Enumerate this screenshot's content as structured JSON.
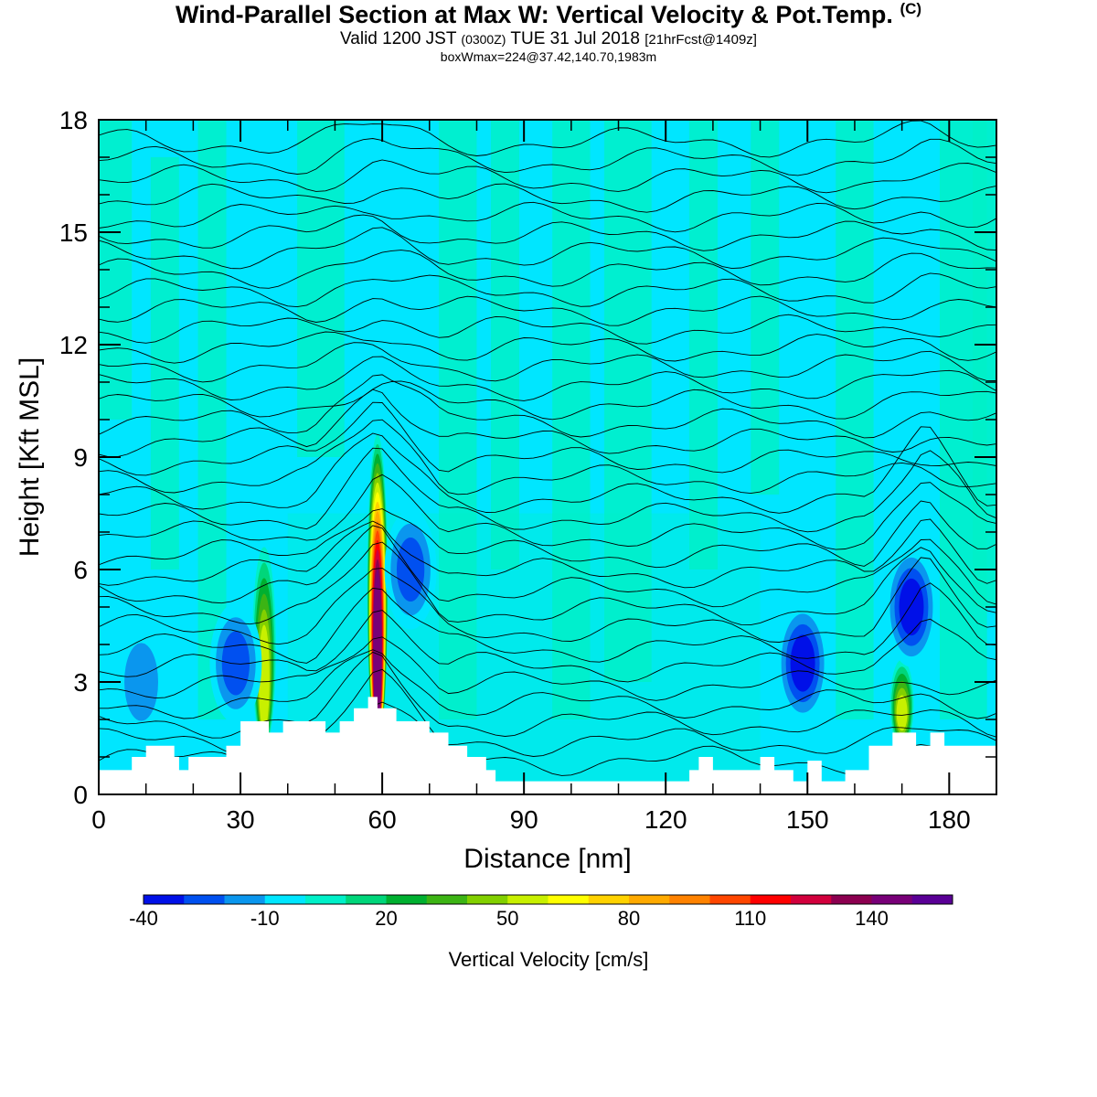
{
  "title": {
    "main": "Wind-Parallel Section at Max W: Vertical Velocity & Pot.Temp.",
    "copyright": "(C)",
    "valid": "Valid 1200 JST",
    "utc": "(0300Z)",
    "date": "TUE 31 Jul 2018",
    "forecast": "[21hrFcst@1409z]",
    "boxinfo": "boxWmax=224@37.42,140.70,1983m"
  },
  "chart_data": {
    "type": "heatmap",
    "xlabel": "Distance [nm]",
    "ylabel": "Height [Kft MSL]",
    "xlim": [
      0,
      190
    ],
    "ylim": [
      0,
      18
    ],
    "xticks": [
      0,
      30,
      60,
      90,
      120,
      150,
      180
    ],
    "yticks": [
      0,
      3,
      6,
      9,
      12,
      15,
      18
    ],
    "colorbar": {
      "label": "Vertical Velocity [cm/s]",
      "ticks": [
        -40,
        -10,
        20,
        50,
        80,
        110,
        140
      ],
      "levels": [
        -40,
        -30,
        -20,
        -10,
        0,
        10,
        20,
        30,
        40,
        50,
        60,
        70,
        80,
        90,
        100,
        110,
        120,
        130,
        140,
        150,
        160
      ],
      "colors": [
        "#0010e8",
        "#0050f0",
        "#0a96ee",
        "#00e6ff",
        "#00f0c8",
        "#00d67a",
        "#00b030",
        "#3cb414",
        "#82d000",
        "#c8f000",
        "#ffff00",
        "#ffd200",
        "#ffaa00",
        "#ff8200",
        "#ff4600",
        "#ff0000",
        "#d2003c",
        "#8c0050",
        "#780078",
        "#5a0096"
      ]
    },
    "background_level": "-10 to 0",
    "features": [
      {
        "name": "updraft",
        "x": 59,
        "top_kft": 9,
        "peak_cm_s": 150
      },
      {
        "name": "updraft",
        "x": 35,
        "top_kft": 6,
        "peak_cm_s": 60
      },
      {
        "name": "updraft",
        "x": 170,
        "top_kft": 3,
        "peak_cm_s": 60
      },
      {
        "name": "downdraft",
        "x": 66,
        "center_kft": 6,
        "min_cm_s": -30
      },
      {
        "name": "downdraft",
        "x": 172,
        "center_kft": 5,
        "min_cm_s": -40
      },
      {
        "name": "downdraft",
        "x": 149,
        "center_kft": 3.5,
        "min_cm_s": -40
      },
      {
        "name": "downdraft",
        "x": 29,
        "center_kft": 3.5,
        "min_cm_s": -30
      },
      {
        "name": "downdraft",
        "x": 9,
        "center_kft": 3,
        "min_cm_s": -20
      }
    ],
    "terrain_kft": [
      [
        0,
        0.65
      ],
      [
        7,
        0.65
      ],
      [
        7,
        1
      ],
      [
        10,
        1
      ],
      [
        10,
        1.3
      ],
      [
        16,
        1.3
      ],
      [
        16,
        1
      ],
      [
        17,
        1
      ],
      [
        17,
        0.65
      ],
      [
        19,
        0.65
      ],
      [
        19,
        1
      ],
      [
        27,
        1
      ],
      [
        27,
        1.3
      ],
      [
        30,
        1.3
      ],
      [
        30,
        1.95
      ],
      [
        36,
        1.95
      ],
      [
        36,
        1.65
      ],
      [
        39,
        1.65
      ],
      [
        39,
        1.95
      ],
      [
        48,
        1.95
      ],
      [
        48,
        1.65
      ],
      [
        51,
        1.65
      ],
      [
        51,
        1.95
      ],
      [
        54,
        1.95
      ],
      [
        54,
        2.3
      ],
      [
        57,
        2.3
      ],
      [
        57,
        2.6
      ],
      [
        59,
        2.6
      ],
      [
        59,
        2.3
      ],
      [
        63,
        2.3
      ],
      [
        63,
        1.95
      ],
      [
        70,
        1.95
      ],
      [
        70,
        1.65
      ],
      [
        74,
        1.65
      ],
      [
        74,
        1.3
      ],
      [
        78,
        1.3
      ],
      [
        78,
        1
      ],
      [
        82,
        1
      ],
      [
        82,
        0.65
      ],
      [
        84,
        0.65
      ],
      [
        84,
        0.35
      ],
      [
        125,
        0.35
      ],
      [
        125,
        0.65
      ],
      [
        127,
        0.65
      ],
      [
        127,
        1
      ],
      [
        130,
        1
      ],
      [
        130,
        0.65
      ],
      [
        140,
        0.65
      ],
      [
        140,
        1
      ],
      [
        143,
        1
      ],
      [
        143,
        0.65
      ],
      [
        147,
        0.65
      ],
      [
        147,
        0.35
      ],
      [
        150,
        0.35
      ],
      [
        150,
        0.9
      ],
      [
        153,
        0.9
      ],
      [
        153,
        0.35
      ],
      [
        158,
        0.35
      ],
      [
        158,
        0.65
      ],
      [
        163,
        0.65
      ],
      [
        163,
        1.3
      ],
      [
        168,
        1.3
      ],
      [
        168,
        1.65
      ],
      [
        173,
        1.65
      ],
      [
        173,
        1.3
      ],
      [
        176,
        1.3
      ],
      [
        176,
        1.65
      ],
      [
        179,
        1.65
      ],
      [
        179,
        1.3
      ],
      [
        190,
        1.3
      ]
    ]
  }
}
